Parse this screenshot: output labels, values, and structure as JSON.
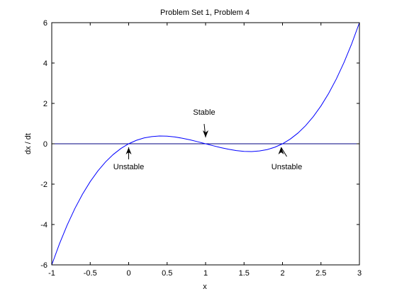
{
  "chart_data": {
    "type": "line",
    "title": "Problem Set 1, Problem 4",
    "xlabel": "x",
    "ylabel": "dx / dt",
    "xlim": [
      -1,
      3
    ],
    "ylim": [
      -6,
      6
    ],
    "x_ticks": [
      -1,
      -0.5,
      0,
      0.5,
      1,
      1.5,
      2,
      2.5,
      3
    ],
    "x_tick_labels": [
      "-1",
      "-0.5",
      "0",
      "0.5",
      "1",
      "1.5",
      "2",
      "2.5",
      "3"
    ],
    "y_ticks": [
      -6,
      -4,
      -2,
      0,
      2,
      4,
      6
    ],
    "y_tick_labels": [
      "-6",
      "-4",
      "-2",
      "0",
      "2",
      "4",
      "6"
    ],
    "grid": false,
    "colors": {
      "curve": "#0000ff",
      "zero_line": "#000080",
      "axes": "#000000"
    },
    "series": [
      {
        "x": [
          -1,
          -0.9,
          -0.8,
          -0.7,
          -0.6,
          -0.5,
          -0.4,
          -0.3,
          -0.2,
          -0.1,
          0,
          0.1,
          0.2,
          0.3,
          0.4,
          0.5,
          0.6,
          0.7,
          0.8,
          0.9,
          1,
          1.1,
          1.2,
          1.3,
          1.4,
          1.5,
          1.6,
          1.7,
          1.8,
          1.9,
          2,
          2.1,
          2.2,
          2.3,
          2.4,
          2.5,
          2.6,
          2.7,
          2.8,
          2.9,
          3
        ],
        "y": [
          -6,
          -4.959,
          -4.032,
          -3.213,
          -2.496,
          -1.875,
          -1.344,
          -0.897,
          -0.528,
          -0.231,
          0,
          0.171,
          0.288,
          0.357,
          0.384,
          0.375,
          0.336,
          0.273,
          0.192,
          0.099,
          0,
          -0.099,
          -0.192,
          -0.273,
          -0.336,
          -0.375,
          -0.384,
          -0.357,
          -0.288,
          -0.171,
          0,
          0.231,
          0.528,
          0.897,
          1.344,
          1.875,
          2.496,
          3.213,
          4.032,
          4.959,
          6
        ]
      }
    ],
    "reference_line": {
      "y": 0
    },
    "annotations": [
      {
        "text": "Unstable",
        "x": 0,
        "y": 0
      },
      {
        "text": "Stable",
        "x": 1,
        "y": 0
      },
      {
        "text": "Unstable",
        "x": 2,
        "y": 0
      }
    ]
  }
}
